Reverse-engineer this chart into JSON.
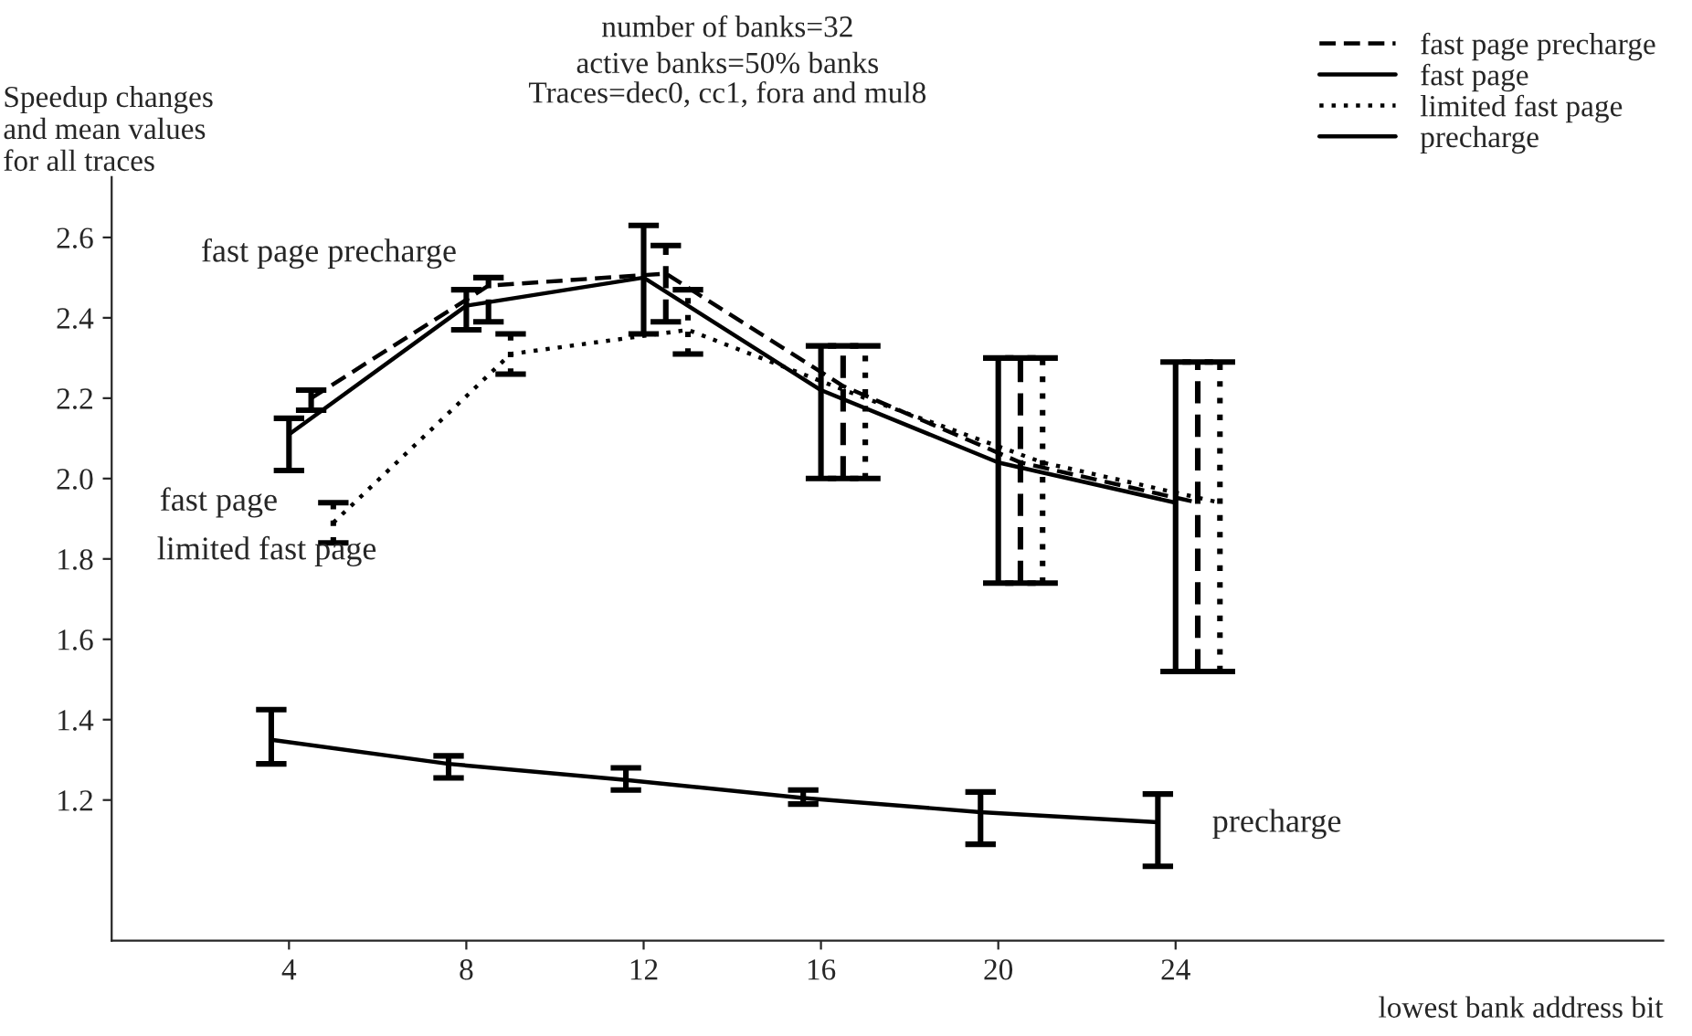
{
  "chart_data": {
    "type": "line",
    "title": "number of banks=32",
    "subtitle": "active banks=50% banks\nTraces=dec0, cc1, fora and mul8",
    "xlabel": "lowest bank address bit",
    "ylabel": "Speedup changes\nand mean values\nfor all traces",
    "xlim": [
      0,
      35
    ],
    "ylim": [
      0.85,
      2.75
    ],
    "xticks": [
      4,
      8,
      12,
      16,
      20,
      24
    ],
    "yticks": [
      1.2,
      1.4,
      1.6,
      1.8,
      {
        "value": 2,
        "label": "2.0"
      },
      2.2,
      2.4,
      2.6
    ],
    "grid": false,
    "legend": "top right",
    "marker": "none",
    "series": [
      {
        "name": "fast page precharge",
        "color": "#000000",
        "line_style": "dashed",
        "x": [
          4.5,
          8.5,
          12.5,
          16.5,
          20.5,
          24.5
        ],
        "values": [
          2.2,
          2.48,
          2.51,
          2.23,
          2.04,
          1.94
        ],
        "errors": [
          [
            2.17,
            2.22
          ],
          [
            2.39,
            2.5
          ],
          [
            2.39,
            2.58
          ],
          [
            2.0,
            2.33
          ],
          [
            1.74,
            2.3
          ],
          [
            1.52,
            2.29
          ]
        ]
      },
      {
        "name": "fast page",
        "color": "#000000",
        "line_style": "solid",
        "x": [
          4,
          8,
          12,
          16,
          20,
          24
        ],
        "values": [
          2.11,
          2.43,
          2.5,
          2.22,
          2.04,
          1.94
        ],
        "errors": [
          [
            2.02,
            2.15
          ],
          [
            2.37,
            2.47
          ],
          [
            2.36,
            2.63
          ],
          [
            2.0,
            2.33
          ],
          [
            1.74,
            2.3
          ],
          [
            1.52,
            2.29
          ]
        ]
      },
      {
        "name": "limited fast page",
        "color": "#000000",
        "line_style": "dotted",
        "x": [
          5,
          9,
          13,
          17,
          21,
          25
        ],
        "values": [
          1.89,
          2.31,
          2.37,
          2.2,
          2.04,
          1.94
        ],
        "errors": [
          [
            1.84,
            1.94
          ],
          [
            2.26,
            2.36
          ],
          [
            2.31,
            2.47
          ],
          [
            2.0,
            2.33
          ],
          [
            1.74,
            2.3
          ],
          [
            1.52,
            2.29
          ]
        ]
      },
      {
        "name": "precharge",
        "color": "#000000",
        "line_style": "solid",
        "x": [
          3.6,
          7.6,
          11.6,
          15.6,
          19.6,
          23.6
        ],
        "values": [
          1.35,
          1.29,
          1.25,
          1.205,
          1.17,
          1.145
        ],
        "errors": [
          [
            1.29,
            1.425
          ],
          [
            1.255,
            1.31
          ],
          [
            1.225,
            1.28
          ],
          [
            1.19,
            1.225
          ],
          [
            1.09,
            1.22
          ],
          [
            1.035,
            1.215
          ]
        ]
      }
    ],
    "annotations": [
      "fast page precharge",
      "fast page",
      "limited fast page",
      "precharge"
    ]
  }
}
